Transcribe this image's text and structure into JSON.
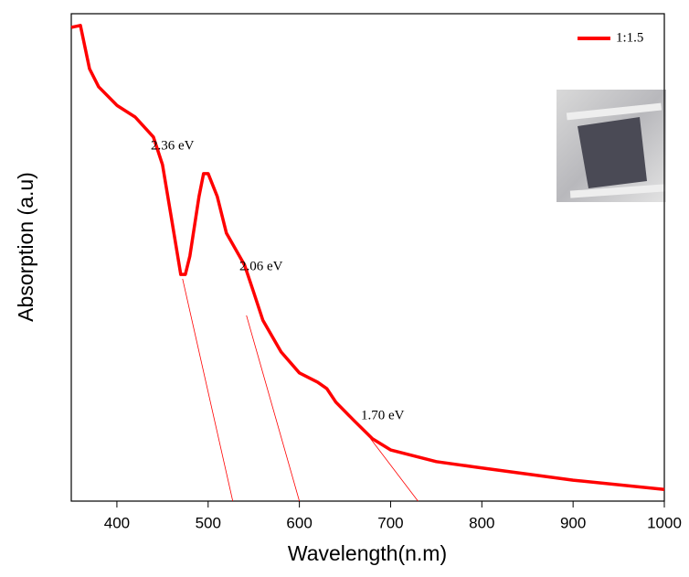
{
  "chart_data": {
    "type": "line",
    "x_label": "Wavelength(n.m)",
    "y_label": "Absorption (a.u)",
    "x": [
      350,
      360,
      370,
      380,
      400,
      420,
      440,
      450,
      460,
      470,
      475,
      480,
      490,
      495,
      500,
      510,
      520,
      540,
      550,
      560,
      580,
      600,
      620,
      630,
      640,
      660,
      680,
      700,
      750,
      800,
      900,
      1000
    ],
    "series": [
      {
        "name": "1:1.5",
        "color": "#ff0000",
        "values": [
          97.2,
          97.6,
          88.7,
          85.0,
          81.2,
          78.8,
          74.7,
          69.0,
          57.8,
          46.5,
          46.5,
          50.3,
          62.5,
          67.2,
          67.2,
          62.5,
          55.0,
          48.4,
          42.8,
          37.1,
          30.6,
          26.3,
          24.4,
          23.1,
          20.3,
          16.5,
          12.8,
          10.5,
          8.1,
          6.8,
          4.3,
          2.4
        ]
      }
    ],
    "tangents": [
      {
        "x": [
          472,
          527
        ],
        "y": [
          45.6,
          0
        ]
      },
      {
        "x": [
          542,
          600
        ],
        "y": [
          38.1,
          0
        ]
      },
      {
        "x": [
          678,
          730
        ],
        "y": [
          12.8,
          0
        ]
      }
    ],
    "annotations": [
      "2.36 eV",
      "2.06 eV",
      "1.70 eV"
    ],
    "xlim": [
      350,
      1000
    ],
    "xticks": [
      400,
      500,
      600,
      700,
      800,
      900,
      1000
    ],
    "ylim": [
      0,
      100
    ],
    "legend": "top-right"
  }
}
